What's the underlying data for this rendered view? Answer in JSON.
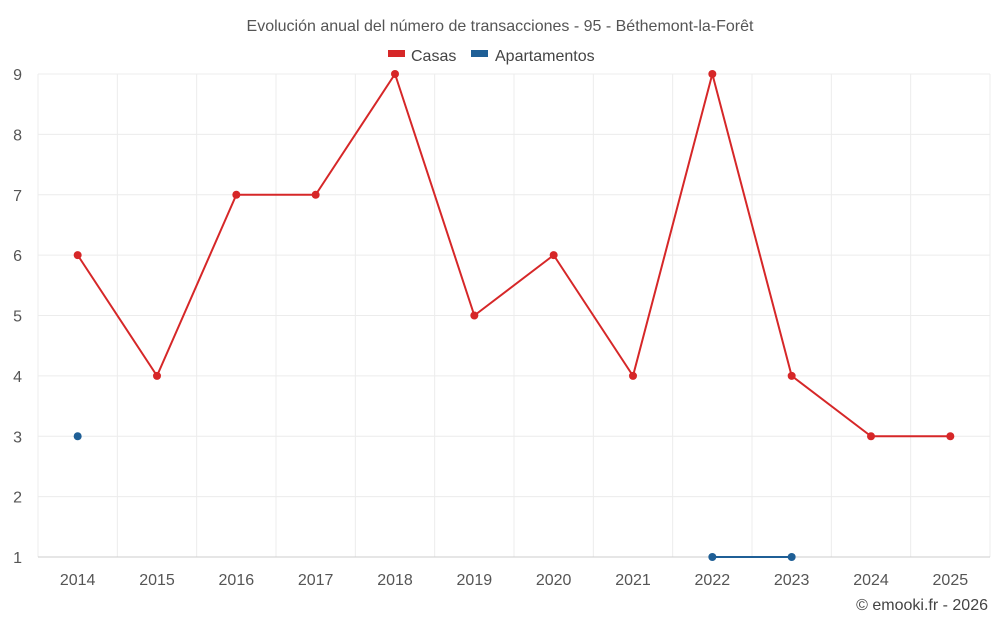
{
  "chart_data": {
    "type": "line",
    "title": "Evolución anual del número de transacciones - 95 - Béthemont-la-Forêt",
    "categories": [
      "2014",
      "2015",
      "2016",
      "2017",
      "2018",
      "2019",
      "2020",
      "2021",
      "2022",
      "2023",
      "2024",
      "2025"
    ],
    "series": [
      {
        "name": "Casas",
        "color": "#d62728",
        "values": [
          6,
          4,
          7,
          7,
          9,
          5,
          6,
          4,
          9,
          4,
          3,
          3
        ]
      },
      {
        "name": "Apartamentos",
        "color": "#1f5f96",
        "values": [
          3,
          null,
          null,
          null,
          null,
          null,
          null,
          null,
          1,
          1,
          null,
          null
        ]
      }
    ],
    "yticks": [
      1,
      2,
      3,
      4,
      5,
      6,
      7,
      8,
      9
    ],
    "ylim": [
      1,
      9
    ],
    "xlabel": "",
    "ylabel": "",
    "legend_position": "top-center",
    "grid": true
  },
  "credit": "© emooki.fr - 2026"
}
